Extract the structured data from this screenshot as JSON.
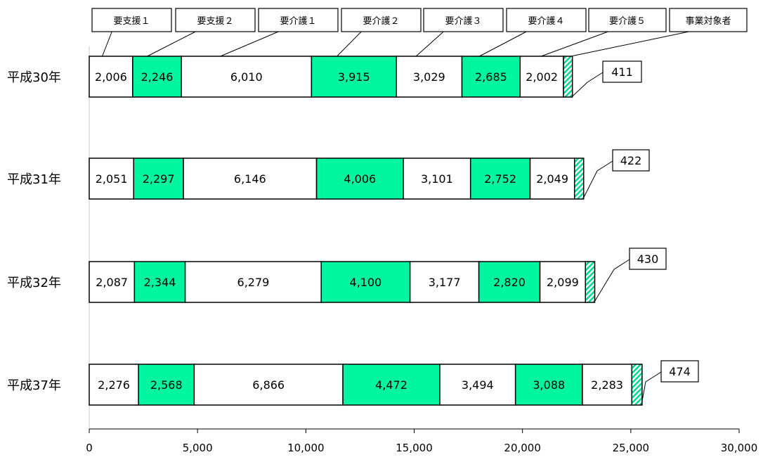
{
  "chart_data": {
    "type": "bar",
    "orientation": "horizontal",
    "stacked": true,
    "categories": [
      "平成30年",
      "平成31年",
      "平成32年",
      "平成37年"
    ],
    "series": [
      {
        "name": "要支援１",
        "color": "#ffffff",
        "values": [
          2006,
          2051,
          2087,
          2276
        ]
      },
      {
        "name": "要支援２",
        "color": "#00f5a0",
        "values": [
          2246,
          2297,
          2344,
          2568
        ]
      },
      {
        "name": "要介護１",
        "color": "#ffffff",
        "values": [
          6010,
          6146,
          6279,
          6866
        ]
      },
      {
        "name": "要介護２",
        "color": "#00f5a0",
        "values": [
          3915,
          4006,
          4100,
          4472
        ]
      },
      {
        "name": "要介護３",
        "color": "#ffffff",
        "values": [
          3029,
          3101,
          3177,
          3494
        ]
      },
      {
        "name": "要介護４",
        "color": "#00f5a0",
        "values": [
          2685,
          2752,
          2820,
          3088
        ]
      },
      {
        "name": "要介護５",
        "color": "#ffffff",
        "values": [
          2002,
          2049,
          2099,
          2283
        ]
      },
      {
        "name": "事業対象者",
        "color": "hatched",
        "values": [
          411,
          422,
          430,
          474
        ]
      }
    ],
    "segment_labels": [
      [
        "2,006",
        "2,246",
        "6,010",
        "3,915",
        "3,029",
        "2,685",
        "2,002",
        "411"
      ],
      [
        "2,051",
        "2,297",
        "6,146",
        "4,006",
        "3,101",
        "2,752",
        "2,049",
        "422"
      ],
      [
        "2,087",
        "2,344",
        "6,279",
        "4,100",
        "3,177",
        "2,820",
        "2,099",
        "430"
      ],
      [
        "2,276",
        "2,568",
        "6,866",
        "4,472",
        "3,494",
        "3,088",
        "2,283",
        "474"
      ]
    ],
    "xlim": [
      0,
      30000
    ],
    "xticks": [
      0,
      5000,
      10000,
      15000,
      20000,
      25000,
      30000
    ],
    "xtick_labels": [
      "0",
      "5,000",
      "10,000",
      "15,000",
      "20,000",
      "25,000",
      "30,000"
    ],
    "title": "",
    "xlabel": "",
    "ylabel": "",
    "legend_position": "top",
    "grid": false
  }
}
